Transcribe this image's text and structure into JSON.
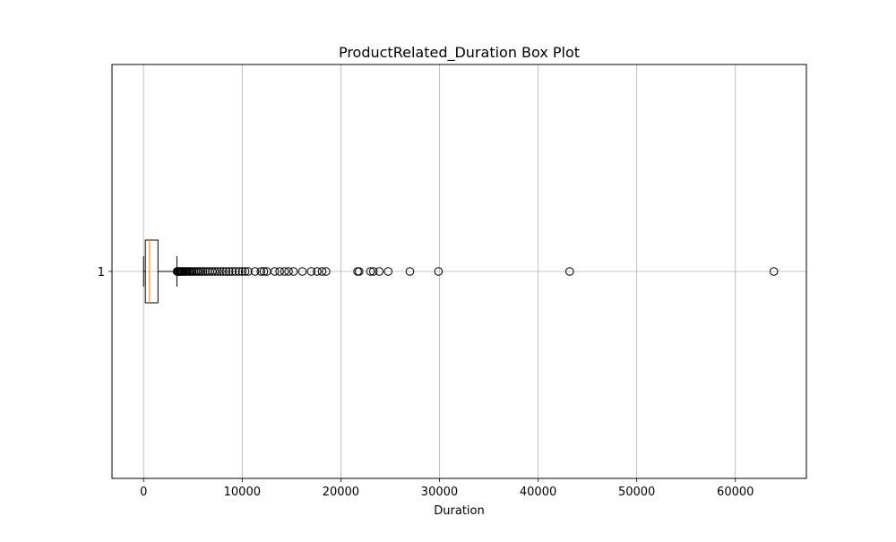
{
  "chart_data": {
    "type": "box",
    "orientation": "horizontal",
    "title": "ProductRelated_Duration Box Plot",
    "xlabel": "Duration",
    "ylabel": "",
    "xlim": [
      -3200,
      67200
    ],
    "xticks": [
      0,
      10000,
      20000,
      30000,
      40000,
      50000,
      60000
    ],
    "yticks": [
      "1"
    ],
    "grid": true,
    "series": [
      {
        "category": "1",
        "min": 0,
        "q1": 180,
        "median": 600,
        "q3": 1460,
        "whisker_low": 0,
        "whisker_high": 3380,
        "outliers": [
          3400,
          3450,
          3500,
          3560,
          3620,
          3700,
          3780,
          3860,
          3950,
          4050,
          4150,
          4260,
          4380,
          4500,
          4630,
          4770,
          4920,
          5080,
          5250,
          5430,
          5620,
          5820,
          6030,
          6250,
          6480,
          6720,
          6970,
          7230,
          7500,
          7780,
          8070,
          8370,
          8680,
          9000,
          9330,
          9670,
          10000,
          10300,
          10600,
          11300,
          11900,
          12200,
          12500,
          13300,
          13800,
          14300,
          14700,
          15200,
          16100,
          17000,
          17600,
          18100,
          18500,
          21700,
          21850,
          23000,
          23300,
          23900,
          24800,
          27000,
          29900,
          43200,
          63900
        ]
      }
    ],
    "colors": {
      "box": "#000000",
      "median": "#ff7f0e",
      "grid": "#b0b0b0",
      "outlier_edge": "#000000"
    }
  }
}
